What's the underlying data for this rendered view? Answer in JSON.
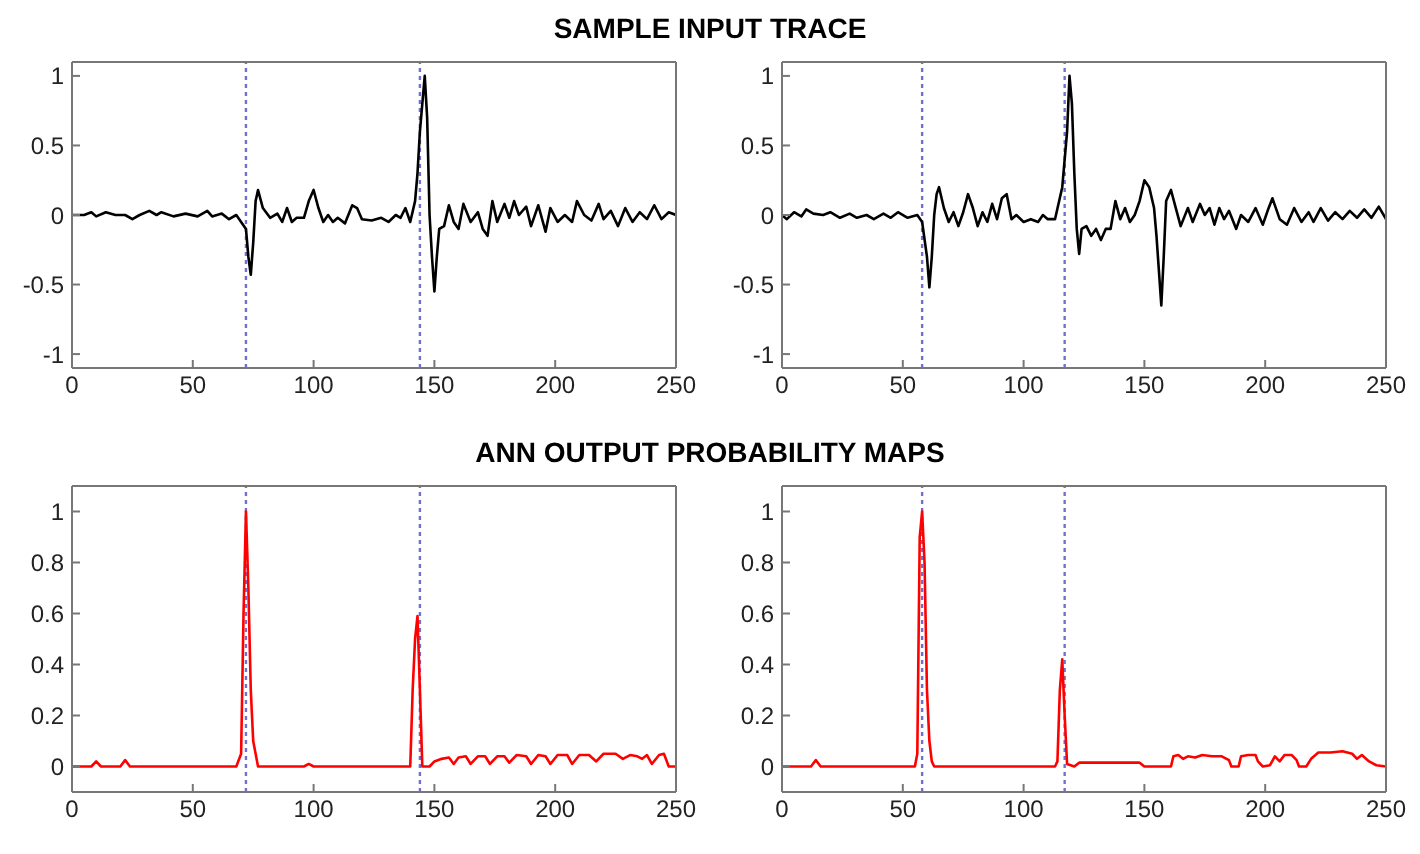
{
  "chart_data": [
    {
      "type": "line",
      "title": "SAMPLE INPUT TRACE",
      "xlim": [
        0,
        250
      ],
      "xticks": [
        0,
        50,
        100,
        150,
        200,
        250
      ],
      "ylim": [
        -1.1,
        1.1
      ],
      "yticks": [
        -1,
        -0.5,
        0,
        0.5,
        1
      ],
      "marker": "none",
      "line_style": "solid",
      "ref_lines": [
        {
          "axis": "x",
          "value": 72,
          "color": "#7070d0",
          "line_style": "dotted"
        },
        {
          "axis": "x",
          "value": 144,
          "color": "#7070d0",
          "line_style": "dotted"
        }
      ],
      "series": [
        {
          "color": "#000000",
          "x": [
            0,
            5,
            8,
            10,
            14,
            18,
            22,
            25,
            28,
            32,
            35,
            37,
            42,
            47,
            52,
            56,
            58,
            62,
            65,
            68,
            70,
            72,
            73,
            74,
            75,
            76,
            77,
            79,
            82,
            85,
            87,
            89,
            91,
            93,
            96,
            98,
            100,
            102,
            104,
            106,
            108,
            110,
            113,
            116,
            118,
            120,
            124,
            128,
            131,
            134,
            136,
            138,
            140,
            142,
            143,
            144,
            146,
            147,
            148,
            149,
            150,
            151,
            152,
            154,
            156,
            158,
            160,
            162,
            165,
            168,
            170,
            172,
            174,
            176,
            179,
            181,
            183,
            185,
            188,
            190,
            193,
            196,
            198,
            201,
            204,
            207,
            209,
            212,
            215,
            218,
            220,
            223,
            226,
            229,
            232,
            235,
            238,
            241,
            244,
            247,
            250
          ],
          "values": [
            0,
            0,
            0.02,
            -0.01,
            0.02,
            0,
            0,
            -0.03,
            0,
            0.03,
            0,
            0.02,
            -0.01,
            0.01,
            -0.01,
            0.03,
            -0.01,
            0.01,
            -0.03,
            0,
            -0.05,
            -0.1,
            -0.3,
            -0.43,
            -0.2,
            0.1,
            0.18,
            0.05,
            -0.02,
            0.01,
            -0.05,
            0.05,
            -0.05,
            -0.02,
            -0.02,
            0.1,
            0.18,
            0.05,
            -0.05,
            0,
            -0.05,
            -0.02,
            -0.06,
            0.07,
            0.05,
            -0.03,
            -0.04,
            -0.02,
            -0.05,
            0,
            -0.02,
            0.05,
            -0.05,
            0.1,
            0.3,
            0.6,
            1,
            0.7,
            0,
            -0.3,
            -0.55,
            -0.3,
            -0.1,
            -0.08,
            0.07,
            -0.05,
            -0.1,
            0.08,
            -0.05,
            0.02,
            -0.1,
            -0.15,
            0.1,
            -0.05,
            0.08,
            -0.02,
            0.1,
            0,
            0.06,
            -0.08,
            0.07,
            -0.12,
            0.05,
            -0.05,
            0,
            -0.05,
            0.1,
            0,
            -0.04,
            0.08,
            -0.03,
            0.03,
            -0.08,
            0.05,
            -0.05,
            0.02,
            -0.03,
            0.07,
            -0.03,
            0.02,
            0
          ]
        }
      ]
    },
    {
      "type": "line",
      "xlim": [
        0,
        250
      ],
      "xticks": [
        0,
        50,
        100,
        150,
        200,
        250
      ],
      "ylim": [
        -1.1,
        1.1
      ],
      "yticks": [
        -1,
        -0.5,
        0,
        0.5,
        1
      ],
      "marker": "none",
      "line_style": "solid",
      "ref_lines": [
        {
          "axis": "x",
          "value": 58,
          "color": "#7070d0",
          "line_style": "dotted"
        },
        {
          "axis": "x",
          "value": 117,
          "color": "#7070d0",
          "line_style": "dotted"
        }
      ],
      "series": [
        {
          "color": "#000000",
          "x": [
            0,
            2,
            5,
            8,
            10,
            13,
            17,
            20,
            24,
            28,
            31,
            35,
            38,
            42,
            45,
            48,
            52,
            56,
            58,
            60,
            61,
            62,
            63,
            64,
            65,
            67,
            69,
            71,
            73,
            75,
            77,
            79,
            81,
            83,
            85,
            87,
            89,
            91,
            93,
            95,
            97,
            100,
            103,
            106,
            108,
            110,
            113,
            116,
            118,
            119,
            120,
            121,
            122,
            123,
            124,
            126,
            128,
            130,
            132,
            134,
            136,
            138,
            140,
            142,
            144,
            146,
            148,
            150,
            152,
            154,
            155,
            156,
            157,
            158,
            159,
            161,
            163,
            165,
            168,
            170,
            173,
            175,
            177,
            179,
            181,
            183,
            185,
            188,
            190,
            193,
            196,
            199,
            201,
            203,
            206,
            209,
            212,
            215,
            218,
            220,
            223,
            226,
            229,
            232,
            235,
            238,
            241,
            244,
            247,
            250
          ],
          "values": [
            0,
            -0.03,
            0.02,
            -0.01,
            0.04,
            0.01,
            0,
            0.02,
            -0.02,
            0.01,
            -0.02,
            0,
            -0.03,
            0.01,
            -0.02,
            0.02,
            -0.02,
            0,
            -0.05,
            -0.3,
            -0.52,
            -0.3,
            0,
            0.15,
            0.2,
            0.05,
            -0.05,
            0.02,
            -0.08,
            0.02,
            0.15,
            0.05,
            -0.08,
            0.02,
            -0.05,
            0.08,
            -0.03,
            0.12,
            0.15,
            -0.03,
            0,
            -0.05,
            -0.03,
            -0.05,
            0,
            -0.03,
            -0.03,
            0.2,
            0.6,
            1,
            0.8,
            0.3,
            -0.1,
            -0.28,
            -0.1,
            -0.08,
            -0.15,
            -0.1,
            -0.18,
            -0.1,
            -0.1,
            0.1,
            -0.03,
            0.05,
            -0.05,
            0,
            0.1,
            0.25,
            0.2,
            0.05,
            -0.15,
            -0.4,
            -0.65,
            -0.3,
            0.1,
            0.18,
            0.05,
            -0.08,
            0.05,
            -0.05,
            0.08,
            0,
            0.05,
            -0.07,
            0.05,
            -0.03,
            0.03,
            -0.1,
            0,
            -0.05,
            0.05,
            -0.07,
            0.03,
            0.12,
            -0.03,
            -0.07,
            0.05,
            -0.05,
            0.02,
            -0.05,
            0.05,
            -0.04,
            0.02,
            -0.03,
            0.03,
            -0.02,
            0.04,
            -0.02,
            0.06,
            -0.03
          ]
        }
      ]
    },
    {
      "type": "line",
      "title": "ANN OUTPUT PROBABILITY MAPS",
      "xlim": [
        0,
        250
      ],
      "xticks": [
        0,
        50,
        100,
        150,
        200,
        250
      ],
      "ylim": [
        -0.1,
        1.1
      ],
      "yticks": [
        0,
        0.2,
        0.4,
        0.6,
        0.8,
        1
      ],
      "marker": "none",
      "line_style": "solid",
      "ref_lines": [
        {
          "axis": "x",
          "value": 72,
          "color": "#7070d0",
          "line_style": "dotted"
        },
        {
          "axis": "x",
          "value": 144,
          "color": "#7070d0",
          "line_style": "dotted"
        }
      ],
      "series": [
        {
          "color": "#ff0000",
          "x": [
            0,
            8,
            10,
            12,
            20,
            22,
            24,
            68,
            70,
            71,
            72,
            73,
            74,
            75,
            77,
            96,
            98,
            100,
            140,
            141,
            142,
            143,
            144,
            145,
            148,
            150,
            153,
            156,
            158,
            160,
            163,
            165,
            168,
            171,
            173,
            176,
            179,
            181,
            184,
            188,
            190,
            193,
            196,
            198,
            201,
            205,
            207,
            210,
            214,
            217,
            220,
            225,
            228,
            231,
            234,
            236,
            238,
            240,
            243,
            245,
            247,
            250
          ],
          "values": [
            0,
            0,
            0.02,
            0,
            0,
            0.025,
            0,
            0,
            0.05,
            0.6,
            1,
            0.7,
            0.3,
            0.1,
            0,
            0,
            0.01,
            0,
            0,
            0.3,
            0.5,
            0.59,
            0.3,
            0,
            0,
            0.02,
            0.03,
            0.035,
            0.01,
            0.035,
            0.04,
            0.01,
            0.04,
            0.04,
            0.01,
            0.04,
            0.04,
            0.015,
            0.045,
            0.04,
            0.01,
            0.045,
            0.04,
            0.01,
            0.045,
            0.045,
            0.01,
            0.045,
            0.045,
            0.02,
            0.05,
            0.05,
            0.03,
            0.045,
            0.04,
            0.03,
            0.045,
            0.01,
            0.045,
            0.05,
            0,
            0
          ]
        }
      ]
    },
    {
      "type": "line",
      "xlim": [
        0,
        250
      ],
      "xticks": [
        0,
        50,
        100,
        150,
        200,
        250
      ],
      "ylim": [
        -0.1,
        1.1
      ],
      "yticks": [
        0,
        0.2,
        0.4,
        0.6,
        0.8,
        1
      ],
      "marker": "none",
      "line_style": "solid",
      "ref_lines": [
        {
          "axis": "x",
          "value": 58,
          "color": "#7070d0",
          "line_style": "dotted"
        },
        {
          "axis": "x",
          "value": 117,
          "color": "#7070d0",
          "line_style": "dotted"
        }
      ],
      "series": [
        {
          "color": "#ff0000",
          "x": [
            0,
            12,
            14,
            16,
            55,
            56,
            57,
            58,
            59,
            60,
            61,
            62,
            63,
            113,
            114,
            115,
            116,
            117,
            118,
            121,
            123,
            130,
            140,
            148,
            150,
            161,
            162,
            164,
            166,
            168,
            171,
            174,
            178,
            182,
            185,
            186,
            189,
            190,
            193,
            196,
            197,
            199,
            202,
            204,
            206,
            208,
            211,
            213,
            214,
            217,
            219,
            222,
            227,
            232,
            236,
            238,
            240,
            243,
            246,
            250
          ],
          "values": [
            0,
            0,
            0.025,
            0,
            0,
            0.05,
            0.9,
            1,
            0.8,
            0.3,
            0.1,
            0.02,
            0,
            0,
            0.02,
            0.3,
            0.42,
            0.2,
            0.01,
            0,
            0.015,
            0.015,
            0.015,
            0.015,
            0,
            0,
            0.04,
            0.045,
            0.03,
            0.04,
            0.035,
            0.045,
            0.04,
            0.04,
            0.025,
            0,
            0,
            0.04,
            0.045,
            0.045,
            0.02,
            0,
            0.005,
            0.04,
            0.02,
            0.045,
            0.045,
            0.025,
            0,
            0,
            0.03,
            0.055,
            0.055,
            0.06,
            0.05,
            0.03,
            0.045,
            0.02,
            0.005,
            0
          ]
        }
      ]
    }
  ]
}
